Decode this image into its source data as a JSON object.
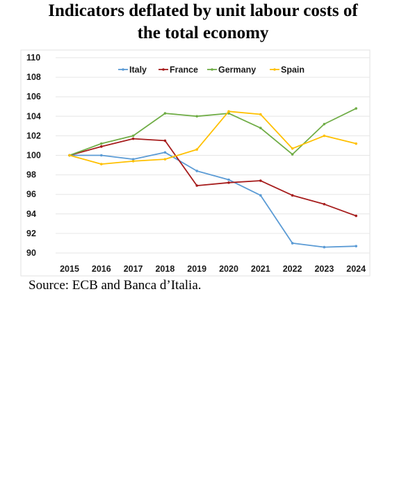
{
  "title_line1": "Indicators deflated by unit labour costs of",
  "title_line2": "the total economy",
  "source": "Source: ECB and Banca d’Italia.",
  "chart_data": {
    "type": "line",
    "categories": [
      "2015",
      "2016",
      "2017",
      "2018",
      "2019",
      "2020",
      "2021",
      "2022",
      "2023",
      "2024"
    ],
    "ylim": [
      90,
      110
    ],
    "yticks": [
      90,
      92,
      94,
      96,
      98,
      100,
      102,
      104,
      106,
      108,
      110
    ],
    "grid": true,
    "legend_position": "top-center",
    "series": [
      {
        "name": "Italy",
        "color": "#5b9bd5",
        "values": [
          100,
          100,
          99.6,
          100.3,
          98.4,
          97.5,
          95.9,
          91.0,
          90.6,
          90.7
        ]
      },
      {
        "name": "France",
        "color": "#a61c1c",
        "values": [
          100,
          100.9,
          101.7,
          101.5,
          96.9,
          97.2,
          97.4,
          95.9,
          95.0,
          93.8
        ]
      },
      {
        "name": "Germany",
        "color": "#70ad47",
        "values": [
          100,
          101.2,
          102.0,
          104.3,
          104.0,
          104.3,
          102.8,
          100.1,
          103.2,
          104.8
        ]
      },
      {
        "name": "Spain",
        "color": "#ffc000",
        "values": [
          100,
          99.1,
          99.4,
          99.6,
          100.6,
          104.5,
          104.2,
          100.7,
          102.0,
          101.2
        ]
      }
    ]
  }
}
